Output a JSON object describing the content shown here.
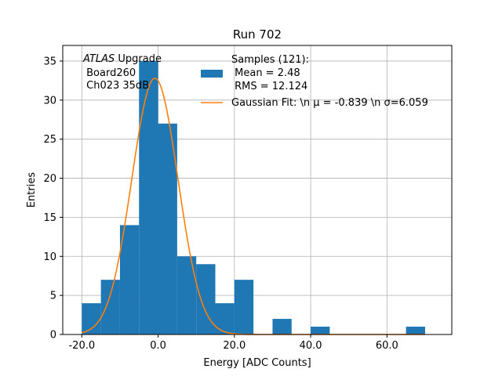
{
  "chart_data": {
    "type": "histogram",
    "title": "Run 702",
    "xlabel": "Energy [ADC Counts]",
    "ylabel": "Entries",
    "xlim": [
      -25,
      77
    ],
    "ylim": [
      0,
      37
    ],
    "grid": true,
    "xticks": [
      -20,
      0,
      20,
      40,
      60
    ],
    "xtick_labels": [
      "-20.0",
      "0.0",
      "20.0",
      "40.0",
      "60.0"
    ],
    "yticks": [
      0,
      5,
      10,
      15,
      20,
      25,
      30,
      35
    ],
    "ytick_labels": [
      "0",
      "5",
      "10",
      "15",
      "20",
      "25",
      "30",
      "35"
    ],
    "bins": [
      {
        "x0": -20,
        "x1": -15,
        "count": 4
      },
      {
        "x0": -15,
        "x1": -10,
        "count": 7
      },
      {
        "x0": -10,
        "x1": -5,
        "count": 14
      },
      {
        "x0": -5,
        "x1": 0,
        "count": 35
      },
      {
        "x0": 0,
        "x1": 5,
        "count": 27
      },
      {
        "x0": 5,
        "x1": 10,
        "count": 10
      },
      {
        "x0": 10,
        "x1": 15,
        "count": 9
      },
      {
        "x0": 15,
        "x1": 20,
        "count": 4
      },
      {
        "x0": 20,
        "x1": 25,
        "count": 7
      },
      {
        "x0": 25,
        "x1": 30,
        "count": 0
      },
      {
        "x0": 30,
        "x1": 35,
        "count": 2
      },
      {
        "x0": 35,
        "x1": 40,
        "count": 0
      },
      {
        "x0": 40,
        "x1": 45,
        "count": 1
      },
      {
        "x0": 45,
        "x1": 50,
        "count": 0
      },
      {
        "x0": 50,
        "x1": 55,
        "count": 0
      },
      {
        "x0": 55,
        "x1": 60,
        "count": 0
      },
      {
        "x0": 60,
        "x1": 65,
        "count": 0
      },
      {
        "x0": 65,
        "x1": 70,
        "count": 1
      }
    ],
    "fit": {
      "type": "gaussian",
      "mu": -0.839,
      "sigma": 6.059,
      "amplitude": 32.8,
      "x_range": [
        -20,
        70
      ]
    },
    "colors": {
      "bars": "#1f77b4",
      "fit": "#ff7f0e",
      "grid": "#b0b0b0"
    },
    "legend": {
      "location": "top-right",
      "entries": [
        {
          "kind": "bar",
          "lines": [
            "Samples (121):",
            " Mean = 2.48",
            " RMS = 12.124"
          ]
        },
        {
          "kind": "line",
          "text": "Gaussian Fit: \\n μ = -0.839 \\n σ=6.059"
        }
      ]
    },
    "annotation": {
      "label_italic": "ATLAS",
      "label_rest": " Upgrade",
      "lines": [
        " Board260",
        " Ch023 35dB"
      ]
    }
  }
}
